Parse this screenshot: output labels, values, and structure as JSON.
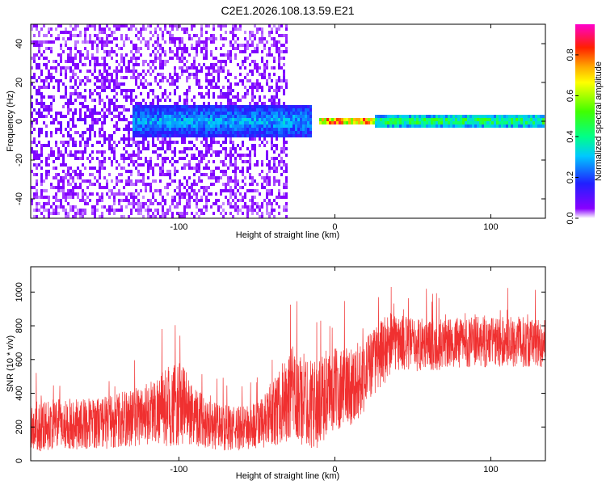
{
  "figure_title": "C2E1.2026.108.13.59.E21",
  "chart_data": [
    {
      "type": "heatmap",
      "title": "",
      "xlabel": "Height of straight line (km)",
      "ylabel": "Frequency (Hz)",
      "xlim": [
        -195,
        135
      ],
      "ylim": [
        -50,
        50
      ],
      "xticks": [
        -100,
        0,
        100
      ],
      "xtick_labels": [
        "-100",
        "0",
        "100"
      ],
      "yticks": [
        -40,
        -20,
        0,
        20,
        40
      ],
      "ytick_labels": [
        "-40",
        "-20",
        "0",
        "20",
        "40"
      ],
      "colorbar": {
        "label": "Normalized spectral amplitude",
        "range": [
          0.0,
          0.95
        ],
        "ticks": [
          0.0,
          0.2,
          0.4,
          0.6,
          0.8
        ],
        "tick_labels": [
          "0.0",
          "0.2",
          "0.4",
          "0.6",
          "0.8"
        ],
        "colors": [
          "#e8e4fa",
          "#8800ff",
          "#2020ff",
          "#00c8ff",
          "#00ff88",
          "#40ff00",
          "#ffff00",
          "#ffaa00",
          "#ff2000",
          "#ff00aa"
        ]
      },
      "description_bands": [
        {
          "x_range": [
            -195,
            -30
          ],
          "freq_range": [
            -50,
            50
          ],
          "amplitude": 0.05
        },
        {
          "x_range": [
            -130,
            -15
          ],
          "freq_range": [
            -8,
            8
          ],
          "amplitude": 0.3
        },
        {
          "x_range": [
            -10,
            25
          ],
          "freq_range": [
            -2,
            2
          ],
          "amplitude": 0.9
        },
        {
          "x_range": [
            25,
            135
          ],
          "freq_range": [
            -3,
            3
          ],
          "amplitude": 0.5
        }
      ]
    },
    {
      "type": "line",
      "title": "",
      "xlabel": "Height of straight line (km)",
      "ylabel": "SNR (10 * v/v)",
      "xlim": [
        -195,
        135
      ],
      "ylim": [
        0,
        1150
      ],
      "xticks": [
        -100,
        0,
        100
      ],
      "xtick_labels": [
        "-100",
        "0",
        "100"
      ],
      "yticks": [
        0,
        200,
        400,
        600,
        800,
        1000
      ],
      "ytick_labels": [
        "0",
        "200",
        "400",
        "600",
        "800",
        "1000"
      ],
      "color": "#f03030",
      "series": [
        {
          "name": "SNR",
          "x": [
            -195,
            -185,
            -175,
            -165,
            -155,
            -145,
            -135,
            -125,
            -115,
            -105,
            -98,
            -92,
            -85,
            -75,
            -65,
            -55,
            -45,
            -35,
            -27,
            -20,
            -12,
            -5,
            0,
            5,
            10,
            15,
            20,
            25,
            30,
            35,
            40,
            50,
            60,
            70,
            80,
            90,
            100,
            110,
            120,
            130,
            135
          ],
          "mean": [
            200,
            210,
            220,
            215,
            225,
            230,
            245,
            270,
            300,
            330,
            330,
            290,
            240,
            200,
            190,
            195,
            230,
            320,
            380,
            360,
            330,
            390,
            420,
            440,
            450,
            470,
            530,
            590,
            640,
            690,
            700,
            690,
            690,
            690,
            700,
            705,
            700,
            705,
            705,
            700,
            700
          ],
          "spread": [
            150,
            150,
            150,
            150,
            150,
            160,
            170,
            180,
            200,
            250,
            250,
            200,
            160,
            140,
            130,
            140,
            160,
            220,
            300,
            280,
            260,
            250,
            250,
            240,
            240,
            230,
            220,
            200,
            200,
            200,
            170,
            160,
            160,
            150,
            150,
            150,
            150,
            150,
            150,
            150,
            150
          ]
        }
      ]
    }
  ]
}
